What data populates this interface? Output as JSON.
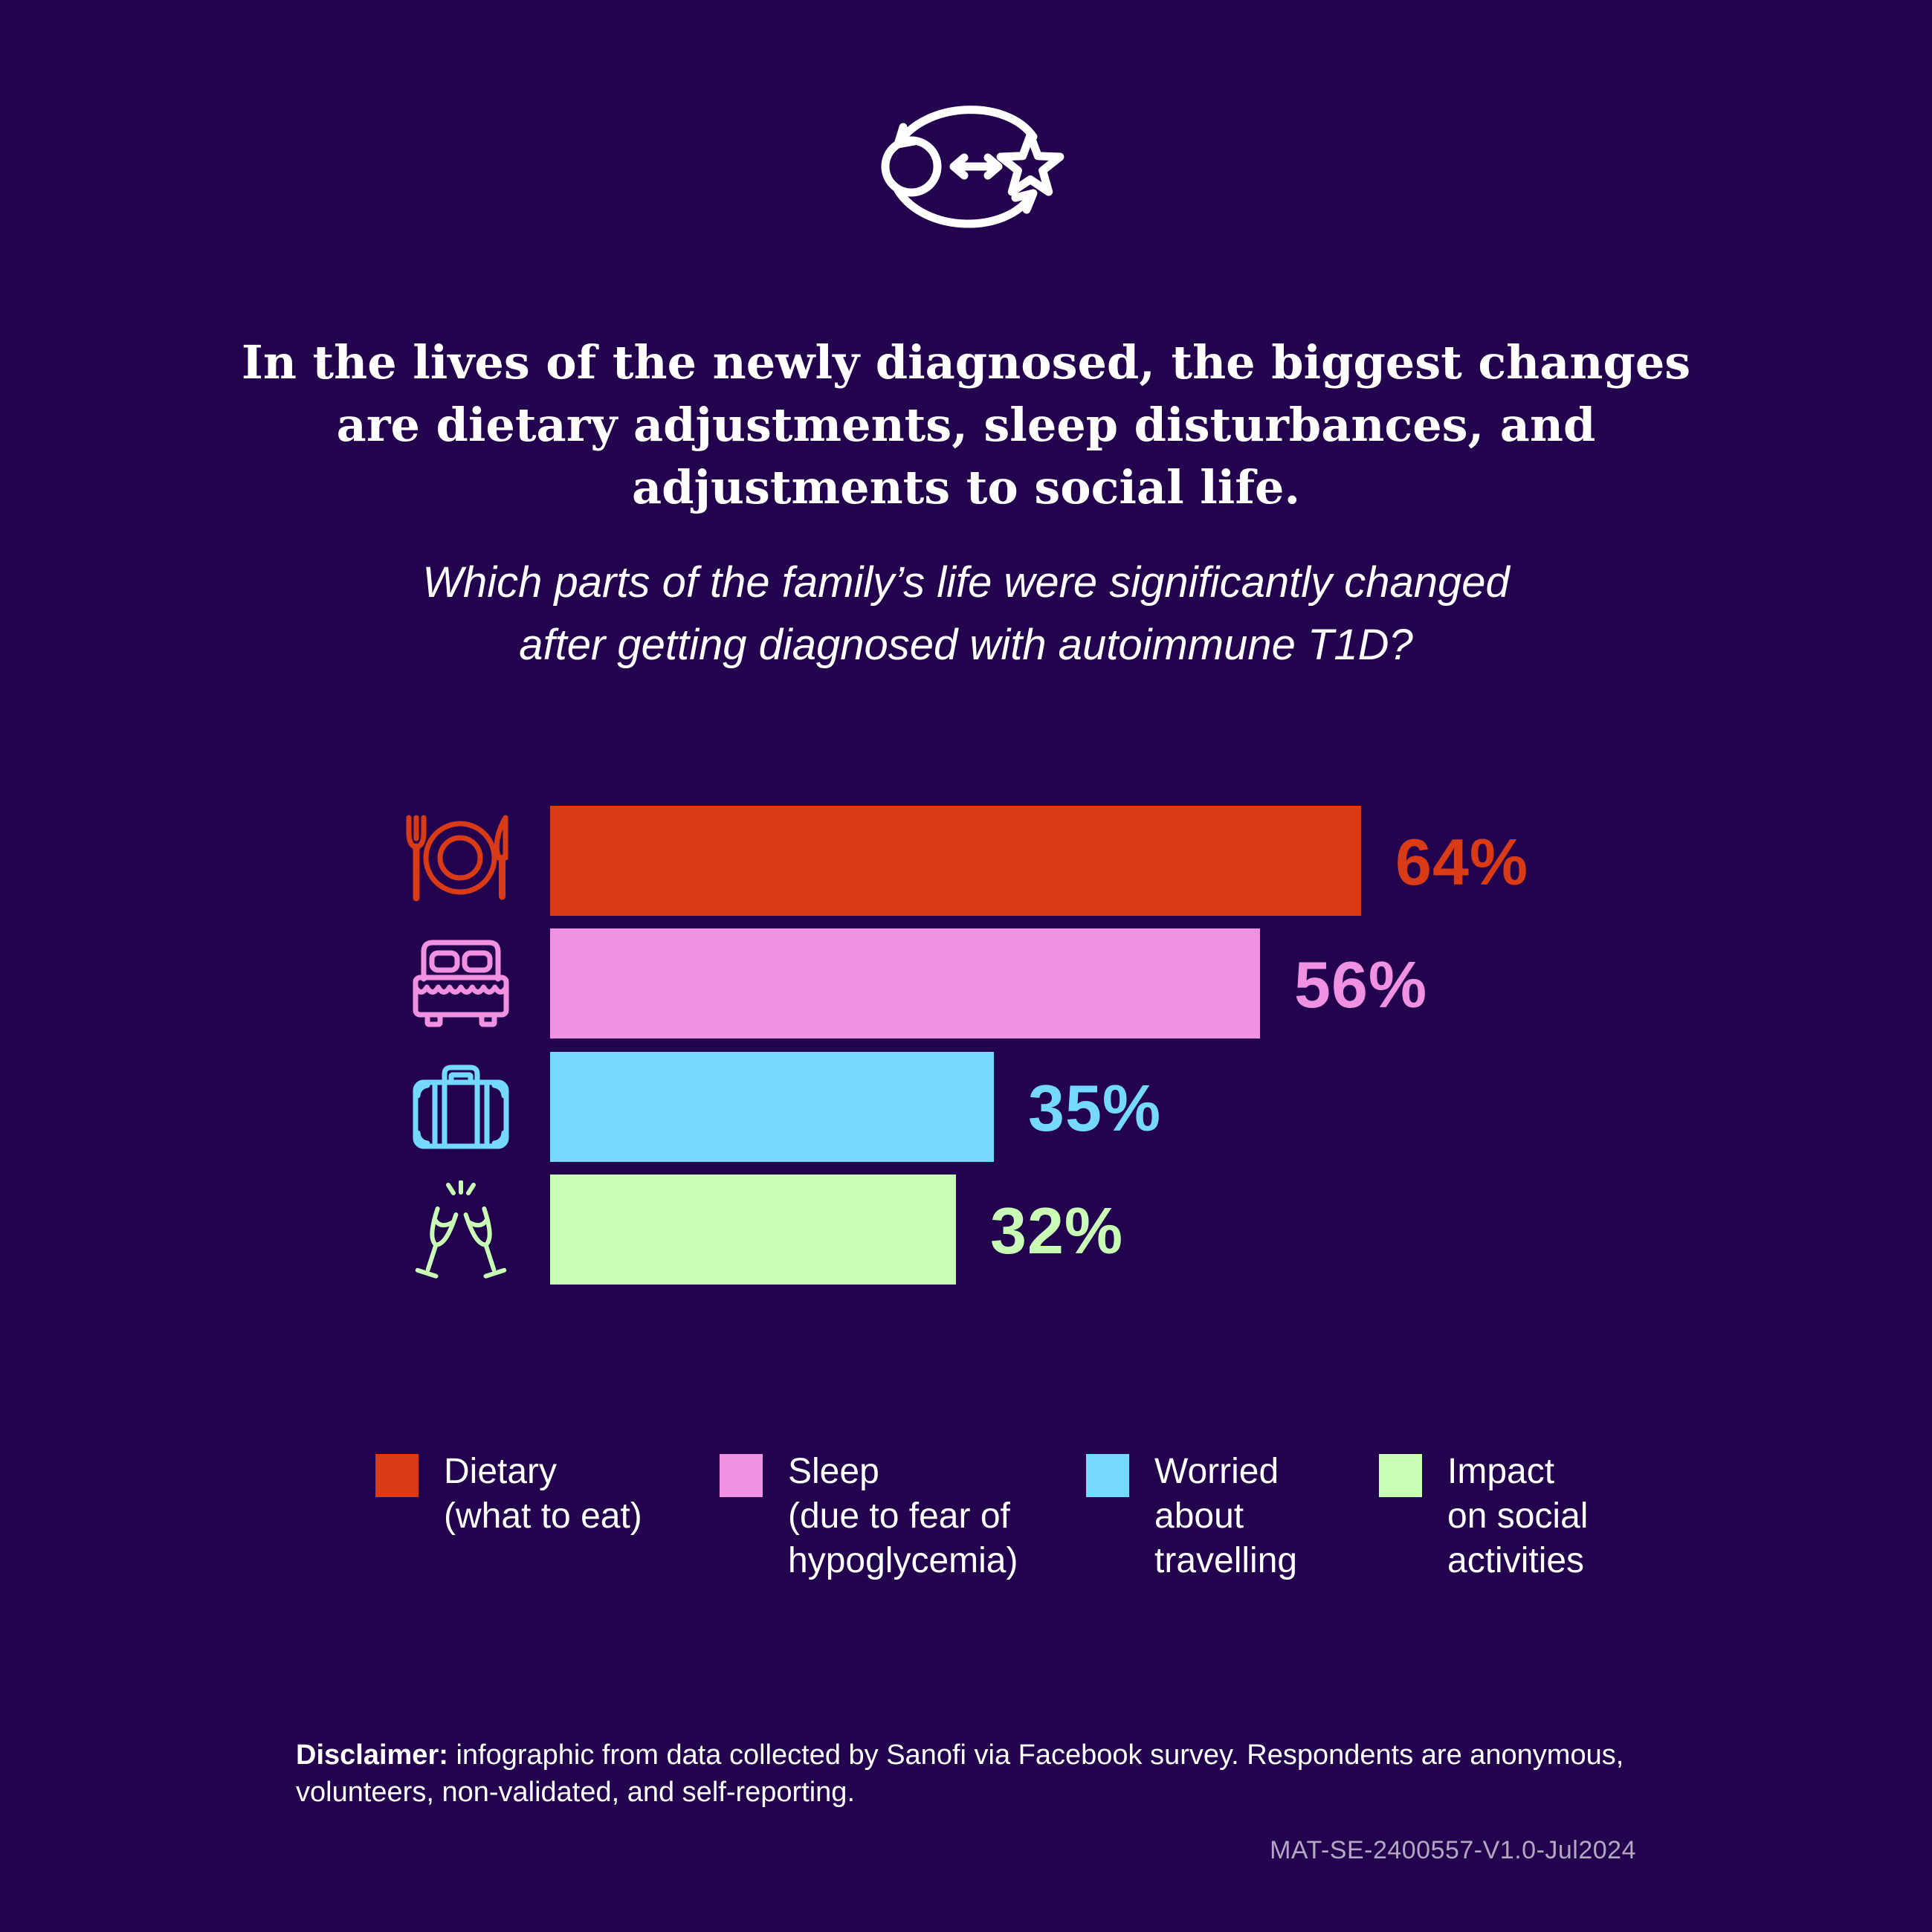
{
  "background_color": "#23024e",
  "header": {
    "icon": "change-cycle-icon",
    "title": "In the lives of the newly diagnosed, the biggest changes\nare dietary adjustments, sleep disturbances, and\nadjustments to social life.",
    "question": "Which parts of the family’s life were significantly changed\nafter getting diagnosed with autoimmune T1D?"
  },
  "chart_data": {
    "type": "bar",
    "orientation": "horizontal",
    "title": "Which parts of the family’s life were significantly changed after getting diagnosed with autoimmune T1D?",
    "unit": "%",
    "xlim": [
      0,
      100
    ],
    "grid": false,
    "legend_position": "bottom",
    "categories": [
      "Dietary (what to eat)",
      "Sleep (due to fear of hypoglycemia)",
      "Worried about travelling",
      "Impact on social activities"
    ],
    "values": [
      64,
      56,
      35,
      32
    ],
    "bars": [
      {
        "label": "Dietary (what to eat)",
        "value": 64,
        "display": "64%",
        "color": "#d93b16",
        "icon": "plate-cutlery-icon"
      },
      {
        "label": "Sleep (due to fear of hypoglycemia)",
        "value": 56,
        "display": "56%",
        "color": "#f191e1",
        "icon": "bed-icon"
      },
      {
        "label": "Worried about travelling",
        "value": 35,
        "display": "35%",
        "color": "#75d9fe",
        "icon": "suitcase-icon"
      },
      {
        "label": "Impact on social activities",
        "value": 32,
        "display": "32%",
        "color": "#c9fcb4",
        "icon": "champagne-glasses-icon"
      }
    ]
  },
  "legend": {
    "items": [
      {
        "label": "Dietary\n(what to eat)",
        "color": "#d93b16"
      },
      {
        "label": "Sleep\n(due to fear of\nhypoglycemia)",
        "color": "#f191e1"
      },
      {
        "label": "Worried\nabout\ntravelling",
        "color": "#75d9fe"
      },
      {
        "label": "Impact\non social\nactivities",
        "color": "#c9fcb4"
      }
    ]
  },
  "footer": {
    "disclaimer_label": "Disclaimer:",
    "disclaimer_text": " infographic from data collected by Sanofi via Facebook survey. Respondents are anonymous,\nvolunteers, non-validated, and self-reporting.",
    "reference_code": "MAT-SE-2400557-V1.0-Jul2024"
  }
}
